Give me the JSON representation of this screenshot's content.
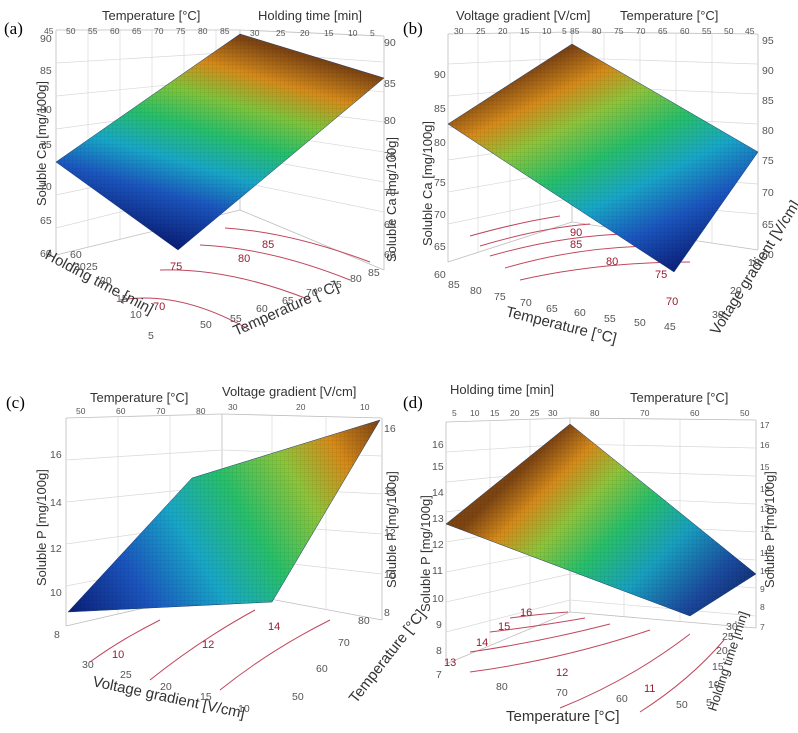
{
  "colors": {
    "surface_low": "#0b2a8c",
    "surface_mid": "#17b7b7",
    "surface_mid2": "#33c43a",
    "surface_high": "#8a4a14",
    "contour": "#c0485e"
  },
  "chart_data": [
    {
      "id": "a",
      "type": "surface",
      "panel_label": "(a)",
      "z_label": "Soluble Ca [mg/100g]",
      "x_label": "Temperature [°C]",
      "y_label": "Holding time [min]",
      "x_ticks": [
        "45",
        "50",
        "55",
        "60",
        "65",
        "70",
        "75",
        "80",
        "85"
      ],
      "y_ticks": [
        "5",
        "10",
        "15",
        "20",
        "25",
        "30"
      ],
      "z_ticks": [
        "60",
        "65",
        "70",
        "75",
        "80",
        "85",
        "90"
      ],
      "top_x_ticks": [
        "45",
        "50",
        "55",
        "60",
        "65",
        "70",
        "75",
        "80",
        "85"
      ],
      "top_y_ticks": [
        "30",
        "25",
        "20",
        "15",
        "10",
        "5"
      ],
      "bottom_x_ticks": [
        "50",
        "55",
        "60",
        "65",
        "70",
        "75",
        "80",
        "85"
      ],
      "bottom_y_ticks": [
        "60",
        "5",
        "10",
        "15",
        "20",
        "25",
        "30"
      ],
      "right_z_ticks": [
        "60",
        "65",
        "70",
        "75",
        "80",
        "85",
        "90"
      ],
      "contour_labels": [
        "70",
        "75",
        "80",
        "85"
      ],
      "xlim": [
        45,
        85
      ],
      "ylim": [
        5,
        30
      ],
      "zlim": [
        60,
        90
      ],
      "corners": {
        "low_x_low_y": 63.5,
        "high_x_low_y": 88.5,
        "low_x_high_y": 72.5,
        "high_x_high_y": 86
      }
    },
    {
      "id": "b",
      "type": "surface",
      "panel_label": "(b)",
      "z_label": "Soluble Ca [mg/100g]",
      "x_label": "Temperature [°C]",
      "y_label": "Voltage gradient [V/cm]",
      "top_x_ticks": [
        "30",
        "25",
        "20",
        "15",
        "10",
        "5"
      ],
      "top_y_ticks": [
        "85",
        "80",
        "75",
        "70",
        "65",
        "60",
        "55",
        "50",
        "45"
      ],
      "left_z_ticks": [
        "60",
        "65",
        "70",
        "75",
        "80",
        "85",
        "90"
      ],
      "right_z_ticks": [
        "60",
        "65",
        "70",
        "75",
        "80",
        "85",
        "90",
        "95"
      ],
      "bottom_x_ticks": [
        "85",
        "80",
        "75",
        "70",
        "65",
        "60",
        "55",
        "50",
        "45"
      ],
      "bottom_y_ticks": [
        "10",
        "20",
        "30"
      ],
      "contour_labels": [
        "70",
        "75",
        "80",
        "85",
        "90"
      ],
      "xlim": [
        45,
        85
      ],
      "ylim": [
        5,
        30
      ],
      "zlim": [
        60,
        95
      ],
      "corners": {
        "low_x_low_y": 61.5,
        "high_x_low_y": 83,
        "low_x_high_y": 76,
        "high_x_high_y": 93
      }
    },
    {
      "id": "c",
      "type": "surface",
      "panel_label": "(c)",
      "z_label": "Soluble P [mg/100g]",
      "x_label": "Voltage gradient [V/cm]",
      "y_label": "Temperature [°C]",
      "top_x_ticks": [
        "50",
        "60",
        "70",
        "80"
      ],
      "top_y_ticks": [
        "30",
        "20",
        "10"
      ],
      "left_z_ticks": [
        "8",
        "10",
        "12",
        "14",
        "16"
      ],
      "right_z_ticks": [
        "8",
        "10",
        "12",
        "14",
        "16"
      ],
      "bottom_x_ticks": [
        "30",
        "25",
        "20",
        "15",
        "10"
      ],
      "bottom_y_ticks": [
        "50",
        "60",
        "70",
        "80"
      ],
      "contour_labels": [
        "10",
        "12",
        "14"
      ],
      "xlim": [
        10,
        30
      ],
      "ylim": [
        45,
        85
      ],
      "zlim": [
        7,
        16
      ],
      "corners": {
        "low_x_low_y": 9.0,
        "high_x_low_y": 14.8,
        "low_x_high_y": 9.4,
        "high_x_high_y": 16.0
      }
    },
    {
      "id": "d",
      "type": "surface",
      "panel_label": "(d)",
      "z_label": "Soluble P [mg/100g]",
      "x_label": "Temperature [°C]",
      "y_label": "Holding time [min]",
      "top_x_ticks": [
        "5",
        "10",
        "15",
        "20",
        "25",
        "30"
      ],
      "top_y_ticks": [
        "80",
        "70",
        "60",
        "50"
      ],
      "left_z_ticks": [
        "7",
        "8",
        "9",
        "10",
        "11",
        "12",
        "13",
        "14",
        "15",
        "16"
      ],
      "right_z_ticks": [
        "7",
        "8",
        "9",
        "10",
        "11",
        "12",
        "13",
        "14",
        "15",
        "16",
        "17"
      ],
      "bottom_x_ticks": [
        "80",
        "70",
        "60",
        "50"
      ],
      "bottom_y_ticks": [
        "5",
        "10",
        "15",
        "20",
        "25",
        "30"
      ],
      "contour_labels": [
        "11",
        "12",
        "13",
        "14",
        "15",
        "16"
      ],
      "xlim": [
        45,
        85
      ],
      "ylim": [
        5,
        30
      ],
      "zlim": [
        7,
        17
      ],
      "corners": {
        "low_x_low_y": 9.8,
        "high_x_low_y": 12.9,
        "low_x_high_y": 10.0,
        "high_x_high_y": 16.7
      }
    }
  ]
}
